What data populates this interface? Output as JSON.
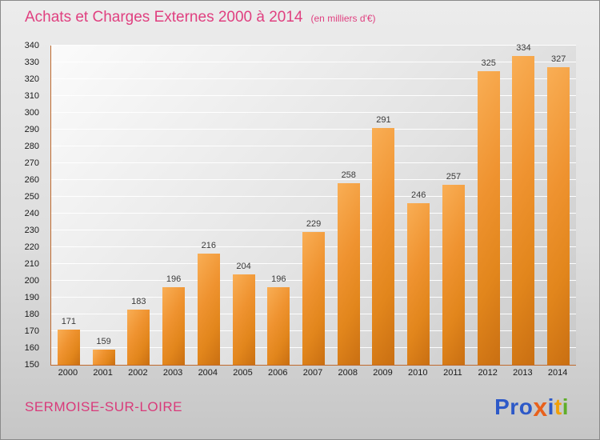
{
  "header": {
    "title": "Achats et Charges Externes 2000 à 2014",
    "subtitle": "(en milliers d'€)"
  },
  "footer": {
    "city": "SERMOISE-SUR-LOIRE",
    "logo_text": "Proxiti",
    "logo_letters": [
      {
        "ch": "P",
        "color": "#2d59c8"
      },
      {
        "ch": "r",
        "color": "#2d59c8"
      },
      {
        "ch": "o",
        "color": "#2d59c8"
      },
      {
        "ch": "x",
        "color": "#e8611c"
      },
      {
        "ch": "i",
        "color": "#2d59c8"
      },
      {
        "ch": "t",
        "color": "#f2a007"
      },
      {
        "ch": "i",
        "color": "#5fae2a"
      }
    ]
  },
  "chart_data": {
    "type": "bar",
    "title": "Achats et Charges Externes 2000 à 2014",
    "subtitle": "(en milliers d'€)",
    "categories": [
      "2000",
      "2001",
      "2002",
      "2003",
      "2004",
      "2005",
      "2006",
      "2007",
      "2008",
      "2009",
      "2010",
      "2011",
      "2012",
      "2013",
      "2014"
    ],
    "values": [
      171,
      159,
      183,
      196,
      216,
      204,
      196,
      229,
      258,
      291,
      246,
      257,
      325,
      334,
      327
    ],
    "xlabel": "",
    "ylabel": "",
    "ylim": [
      150,
      340
    ],
    "ytick_step": 10,
    "grid": true,
    "legend": false,
    "bar_gradient": [
      "#f9ae55",
      "#e2861c",
      "#c96f12"
    ],
    "axis_color": "#bf6a2e",
    "gridline_color": "#ffffff",
    "title_color": "#e04080",
    "label_color": "#3a3a3a"
  }
}
